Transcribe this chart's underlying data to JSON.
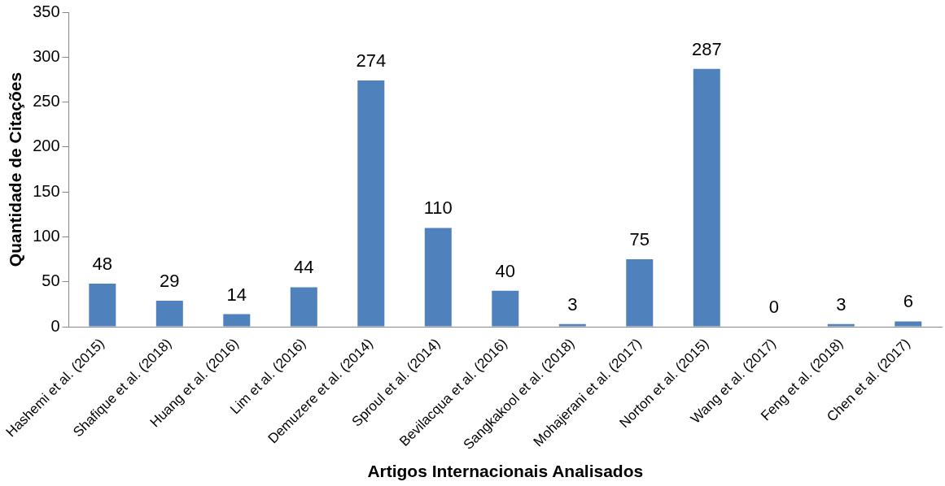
{
  "chart_data": {
    "type": "bar",
    "xlabel": "Artigos Internacionais Analisados",
    "ylabel": "Quantidade de Citações",
    "categories": [
      "Hashemi et al. (2015)",
      "Shafique et al. (2018)",
      "Huang et al. (2016)",
      "Lim et al. (2016)",
      "Demuzere et al. (2014)",
      "Sproul et al. (2014)",
      "Bevilacqua et al. (2016)",
      "Sangkakool et al. (2018)",
      "Mohajerani et al. (2017)",
      "Norton et al. (2015)",
      "Wang et al. (2017)",
      "Feng et al. (2018)",
      "Chen et al. (2017)"
    ],
    "values": [
      48,
      29,
      14,
      44,
      274,
      110,
      40,
      3,
      75,
      287,
      0,
      3,
      6
    ],
    "color": "#4f81bd",
    "ylim": [
      0,
      350
    ],
    "yticks": [
      0,
      50,
      100,
      150,
      200,
      250,
      300,
      350
    ],
    "grid": false,
    "legend": false,
    "data_labels": true
  }
}
